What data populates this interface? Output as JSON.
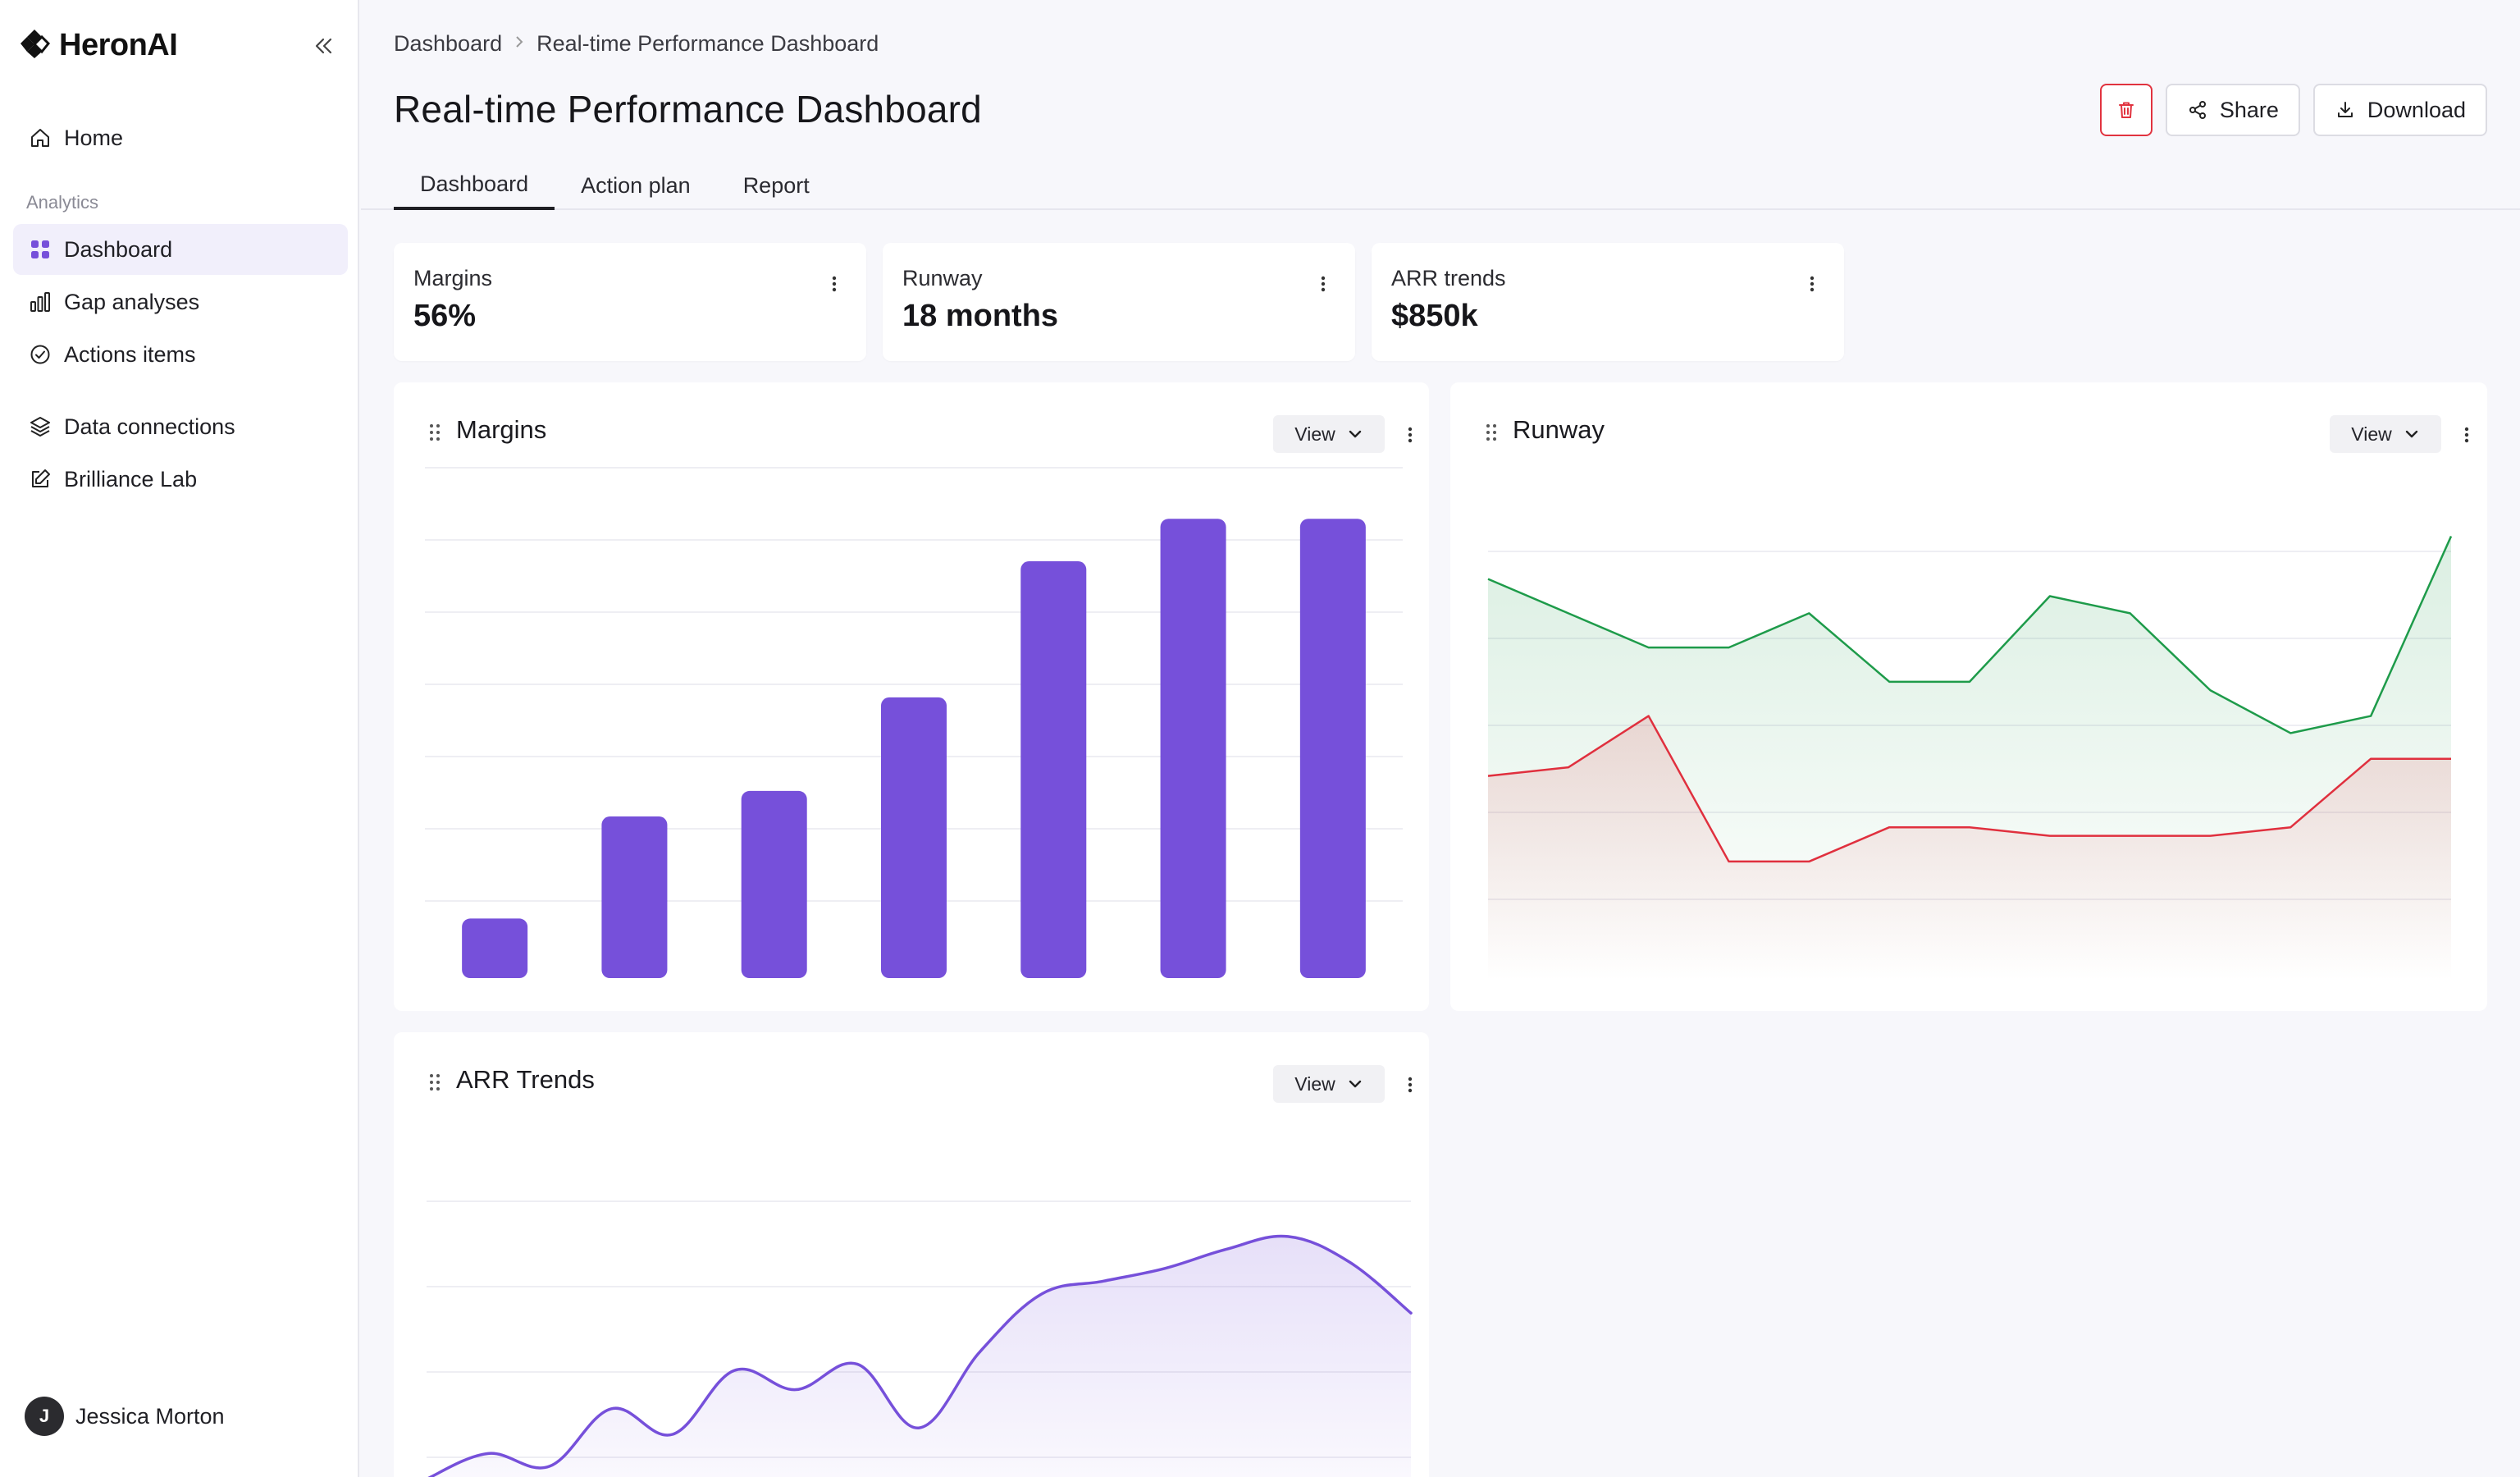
{
  "app": {
    "brand": "HeronAI"
  },
  "sidebar": {
    "home": "Home",
    "section": "Analytics",
    "items": [
      "Dashboard",
      "Gap analyses",
      "Actions items"
    ],
    "data_connections": "Data connections",
    "brilliance_lab": "Brilliance Lab",
    "user": {
      "initial": "J",
      "name": "Jessica Morton"
    }
  },
  "breadcrumb": {
    "root": "Dashboard",
    "current": "Real-time Performance Dashboard"
  },
  "page": {
    "title": "Real-time Performance Dashboard"
  },
  "toolbar": {
    "share": "Share",
    "download": "Download"
  },
  "tabs": [
    "Dashboard",
    "Action plan",
    "Report"
  ],
  "kpis": [
    {
      "label": "Margins",
      "value": "56%"
    },
    {
      "label": "Runway",
      "value": "18 months"
    },
    {
      "label": "ARR trends",
      "value": "$850k"
    }
  ],
  "cards": {
    "margins": {
      "title": "Margins",
      "view": "View"
    },
    "runway": {
      "title": "Runway",
      "view": "View"
    },
    "arr": {
      "title": "ARR Trends",
      "view": "View"
    }
  },
  "colors": {
    "accent": "#7650DA",
    "green": "#1E9B4A",
    "red": "#E0303E",
    "danger": "#E1333F"
  },
  "chart_data": [
    {
      "type": "bar",
      "name": "Margins",
      "values": [
        7,
        19,
        22,
        33,
        49,
        54,
        54
      ],
      "ylim": [
        0,
        60
      ]
    },
    {
      "type": "area",
      "name": "Runway",
      "x": [
        0,
        1,
        2,
        3,
        4,
        5,
        6,
        7,
        8,
        9,
        10,
        11,
        12
      ],
      "series": [
        {
          "values": [
            47,
            43,
            39,
            39,
            43,
            35,
            35,
            45,
            43,
            34,
            29,
            31,
            52
          ]
        },
        {
          "values": [
            24,
            25,
            31,
            14,
            14,
            18,
            18,
            17,
            17,
            17,
            18,
            26,
            26
          ]
        }
      ],
      "ylim": [
        0,
        60
      ]
    },
    {
      "type": "area",
      "name": "ARR Trends",
      "x": [
        0,
        1,
        2,
        3,
        4,
        5,
        6,
        7,
        8,
        9,
        10,
        11,
        12,
        13,
        14,
        15,
        16
      ],
      "values": [
        2,
        6,
        4,
        13,
        9,
        19,
        16,
        20,
        10,
        22,
        31,
        33,
        35,
        38,
        40,
        36,
        28
      ],
      "ylim": [
        0,
        45
      ]
    }
  ]
}
